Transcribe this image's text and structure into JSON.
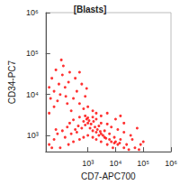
{
  "chart_data": {
    "type": "scatter",
    "title": "[Blasts]",
    "x_label": "CD7-APC700",
    "y_label": "CD34-PC7",
    "log": true,
    "color": "#ff0000",
    "marker": "circle",
    "xlim": [
      30,
      1000000
    ],
    "xticks": [
      {
        "value": 1000,
        "label": "10³"
      },
      {
        "value": 10000,
        "label": "10⁴"
      },
      {
        "value": 100000,
        "label": "10⁵"
      },
      {
        "value": 1000000,
        "label": "10⁶"
      }
    ],
    "ylim": [
      400,
      1000000
    ],
    "yticks": [
      {
        "value": 1000,
        "label": "10³"
      },
      {
        "value": 10000,
        "label": "10⁴"
      },
      {
        "value": 100000,
        "label": "10⁵"
      },
      {
        "value": 1000000,
        "label": "10⁶"
      }
    ],
    "x": [
      100,
      200,
      300,
      500,
      700,
      1000,
      1500,
      2000,
      3000,
      5000,
      8000,
      12000,
      20000,
      400,
      600,
      800,
      1000,
      1200,
      1500,
      2000,
      2500,
      3000,
      4000,
      6000,
      10000,
      15000,
      25000,
      50,
      60,
      80,
      150,
      250,
      350,
      450,
      700,
      900,
      1100,
      1300,
      1800,
      2200,
      2800,
      3500,
      4500,
      7000,
      9000,
      40,
      70,
      120,
      180,
      220,
      300,
      500,
      800,
      1000,
      1600,
      2500,
      4000,
      6000,
      9000,
      14000,
      30000,
      50000,
      80000,
      40000,
      35000,
      20000,
      12000,
      7000,
      5000,
      3000,
      2000,
      1500,
      40,
      60,
      80,
      100,
      150,
      200,
      120,
      70,
      50,
      300,
      400,
      500,
      700,
      250,
      180,
      90,
      60,
      45,
      130,
      220,
      350,
      600,
      800,
      1000,
      1500,
      2000,
      3000,
      110,
      40,
      160,
      500,
      900,
      60000,
      100000,
      70000,
      20000,
      10000,
      15000,
      5000
    ],
    "values": [
      500,
      600,
      700,
      800,
      900,
      1000,
      900,
      800,
      700,
      600,
      500,
      600,
      500,
      1200,
      1500,
      1800,
      2000,
      1500,
      1300,
      1200,
      1000,
      1100,
      900,
      800,
      700,
      800,
      600,
      500,
      800,
      1100,
      900,
      1100,
      1400,
      1700,
      2200,
      2500,
      2300,
      1900,
      1600,
      1400,
      1250,
      1000,
      850,
      700,
      650,
      600,
      1400,
      1300,
      1600,
      2000,
      2400,
      2800,
      3000,
      2700,
      2200,
      1700,
      1300,
      1100,
      900,
      650,
      450,
      500,
      600,
      800,
      1000,
      1200,
      1400,
      1600,
      1900,
      2000,
      2500,
      2800,
      3500,
      5000,
      7000,
      10000,
      15000,
      20000,
      30000,
      40000,
      25000,
      8000,
      12000,
      6000,
      4500,
      4000,
      6000,
      18000,
      12000,
      8000,
      50000,
      35000,
      25000,
      18000,
      9000,
      5000,
      4000,
      3500,
      3000,
      70000,
      15000,
      9000,
      35000,
      14000,
      1500,
      700,
      450,
      2000,
      2500,
      3000,
      3500
    ]
  }
}
